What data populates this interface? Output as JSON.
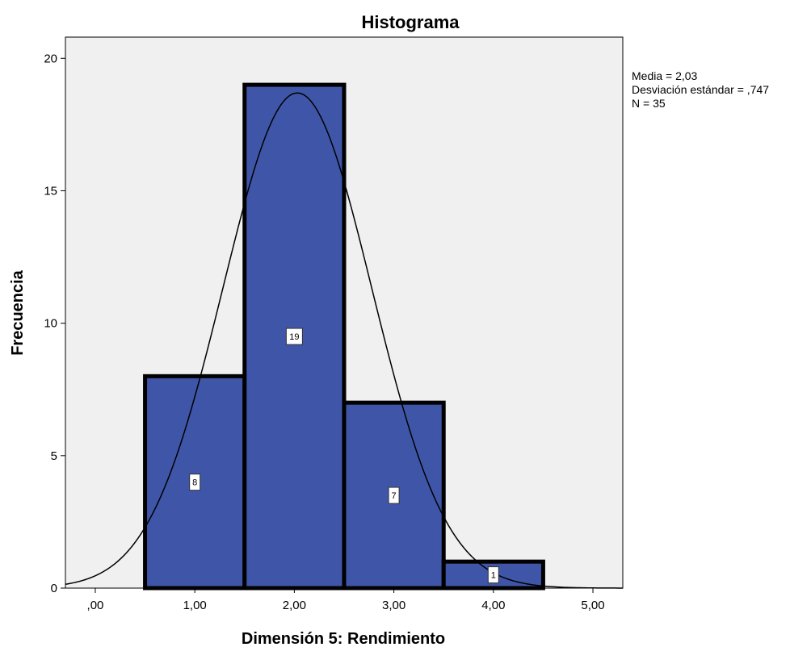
{
  "chart_data": {
    "type": "bar",
    "title": "Histograma",
    "xlabel": "Dimensión 5: Rendimiento",
    "ylabel": "Frecuencia",
    "xlim": [
      -0.3,
      5.3
    ],
    "ylim": [
      0,
      20.8
    ],
    "x_ticks": [
      {
        "value": 0,
        "label": ",00"
      },
      {
        "value": 1,
        "label": "1,00"
      },
      {
        "value": 2,
        "label": "2,00"
      },
      {
        "value": 3,
        "label": "3,00"
      },
      {
        "value": 4,
        "label": "4,00"
      },
      {
        "value": 5,
        "label": "5,00"
      }
    ],
    "y_ticks": [
      {
        "value": 0,
        "label": "0"
      },
      {
        "value": 5,
        "label": "5"
      },
      {
        "value": 10,
        "label": "10"
      },
      {
        "value": 15,
        "label": "15"
      },
      {
        "value": 20,
        "label": "20"
      }
    ],
    "bins": [
      {
        "start": 0.5,
        "end": 1.5,
        "value": 8,
        "label": "8"
      },
      {
        "start": 1.5,
        "end": 2.5,
        "value": 19,
        "label": "19"
      },
      {
        "start": 2.5,
        "end": 3.5,
        "value": 7,
        "label": "7"
      },
      {
        "start": 3.5,
        "end": 4.5,
        "value": 1,
        "label": "1"
      }
    ],
    "bin_width": 1,
    "normal_curve": {
      "mean": 2.03,
      "sd": 0.747,
      "n": 35
    },
    "grid": false,
    "colors": {
      "bar_fill": "#3f56a8",
      "bar_stroke": "#000000",
      "plot_background": "#f0f0f0",
      "curve": "#000000"
    }
  },
  "stats": {
    "mean": "Media = 2,03",
    "sd": "Desviación estándar = ,747",
    "n": "N = 35"
  }
}
